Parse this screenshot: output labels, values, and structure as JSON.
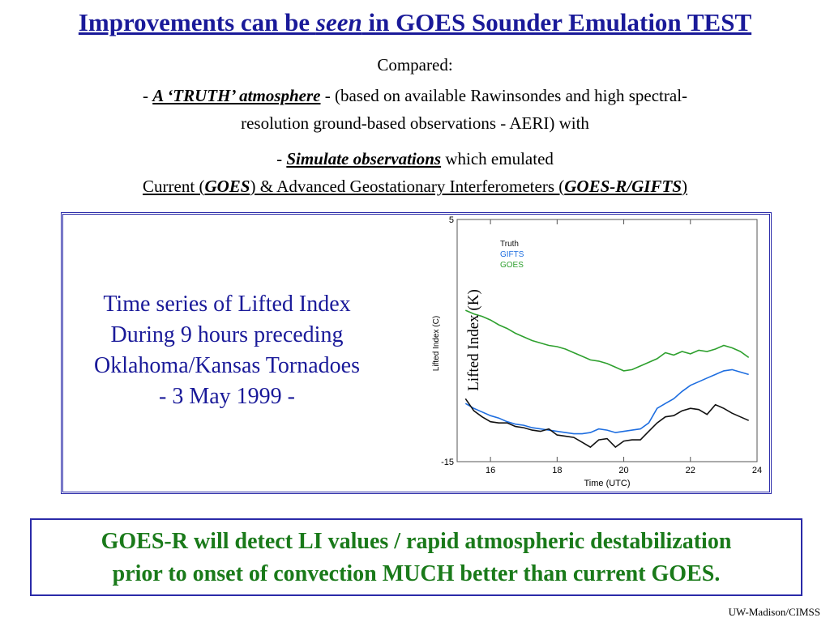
{
  "title": {
    "part1": "Improvements can be ",
    "part2": "seen",
    "part3": " in GOES Sounder Emulation TEST"
  },
  "intro": {
    "compared": "Compared:",
    "dash1": "- ",
    "truth": "A ‘TRUTH’ atmosphere",
    "truth_rest": " - (based on available Rawinsondes and high spectral-",
    "truth_line2": "resolution ground-based observations - AERI) with",
    "dash2": "- ",
    "simulate": "Simulate observations",
    "simulate_rest": " which emulated",
    "current_pre": "Current (",
    "goes": "GOES",
    "current_mid": ") & Advanced Geostationary Interferometers (",
    "goesr": "GOES-R/GIFTS",
    "current_post": ")"
  },
  "description": {
    "line1": "Time series of Lifted Index",
    "line2": "During 9 hours preceding",
    "line3": "Oklahoma/Kansas Tornadoes",
    "line4": "- 3 May 1999 -"
  },
  "chart_data": {
    "type": "line",
    "xlabel": "Time (UTC)",
    "ylabel": "Lifted Index (C)",
    "ylabel_overlay": "Lifted Index  (K)",
    "xlim": [
      15,
      24
    ],
    "ylim": [
      -15,
      5
    ],
    "xticks": [
      "16",
      "18",
      "20",
      "22",
      "24"
    ],
    "yticks": [
      "5",
      "-15"
    ],
    "legend_position": "top-left",
    "series": [
      {
        "name": "Truth",
        "color": "#111111",
        "x": [
          15.25,
          15.5,
          15.75,
          16,
          16.25,
          16.5,
          16.75,
          17,
          17.25,
          17.5,
          17.75,
          18,
          18.25,
          18.5,
          18.75,
          19,
          19.25,
          19.5,
          19.75,
          20,
          20.25,
          20.5,
          20.75,
          21,
          21.25,
          21.5,
          21.75,
          22,
          22.25,
          22.5,
          22.75,
          23,
          23.25,
          23.5,
          23.75
        ],
        "values": [
          -9.8,
          -10.8,
          -11.3,
          -11.7,
          -11.8,
          -11.8,
          -12.1,
          -12.2,
          -12.4,
          -12.5,
          -12.3,
          -12.8,
          -12.9,
          -13.0,
          -13.4,
          -13.8,
          -13.2,
          -13.1,
          -13.8,
          -13.3,
          -13.2,
          -13.2,
          -12.5,
          -11.8,
          -11.3,
          -11.2,
          -10.8,
          -10.6,
          -10.7,
          -11.1,
          -10.3,
          -10.6,
          -11.0,
          -11.3,
          -11.6
        ]
      },
      {
        "name": "GIFTS",
        "color": "#1e6ee0",
        "x": [
          15.25,
          15.5,
          15.75,
          16,
          16.25,
          16.5,
          16.75,
          17,
          17.25,
          17.5,
          17.75,
          18,
          18.25,
          18.5,
          18.75,
          19,
          19.25,
          19.5,
          19.75,
          20,
          20.25,
          20.5,
          20.75,
          21,
          21.25,
          21.5,
          21.75,
          22,
          22.25,
          22.5,
          22.75,
          23,
          23.25,
          23.5,
          23.75
        ],
        "values": [
          -10.2,
          -10.6,
          -10.9,
          -11.2,
          -11.4,
          -11.7,
          -11.9,
          -12.0,
          -12.2,
          -12.3,
          -12.4,
          -12.5,
          -12.6,
          -12.7,
          -12.7,
          -12.6,
          -12.3,
          -12.4,
          -12.6,
          -12.5,
          -12.4,
          -12.3,
          -11.8,
          -10.6,
          -10.2,
          -9.8,
          -9.2,
          -8.7,
          -8.4,
          -8.1,
          -7.8,
          -7.5,
          -7.4,
          -7.6,
          -7.8
        ]
      },
      {
        "name": "GOES",
        "color": "#2ea02e",
        "x": [
          15.25,
          15.5,
          15.75,
          16,
          16.25,
          16.5,
          16.75,
          17,
          17.25,
          17.5,
          17.75,
          18,
          18.25,
          18.5,
          18.75,
          19,
          19.25,
          19.5,
          19.75,
          20,
          20.25,
          20.5,
          20.75,
          21,
          21.25,
          21.5,
          21.75,
          22,
          22.25,
          22.5,
          22.75,
          23,
          23.25,
          23.5,
          23.75
        ],
        "values": [
          -2.5,
          -2.8,
          -3.0,
          -3.3,
          -3.7,
          -4.0,
          -4.4,
          -4.7,
          -5.0,
          -5.2,
          -5.4,
          -5.5,
          -5.7,
          -6.0,
          -6.3,
          -6.6,
          -6.7,
          -6.9,
          -7.2,
          -7.5,
          -7.4,
          -7.1,
          -6.8,
          -6.5,
          -6.0,
          -6.2,
          -5.9,
          -6.1,
          -5.8,
          -5.9,
          -5.7,
          -5.4,
          -5.6,
          -5.9,
          -6.4
        ]
      }
    ]
  },
  "conclusion": {
    "line1": "GOES-R will detect LI values / rapid atmospheric destabilization",
    "line2": "prior to onset of convection MUCH better than current GOES."
  },
  "footer": "UW-Madison/CIMSS"
}
